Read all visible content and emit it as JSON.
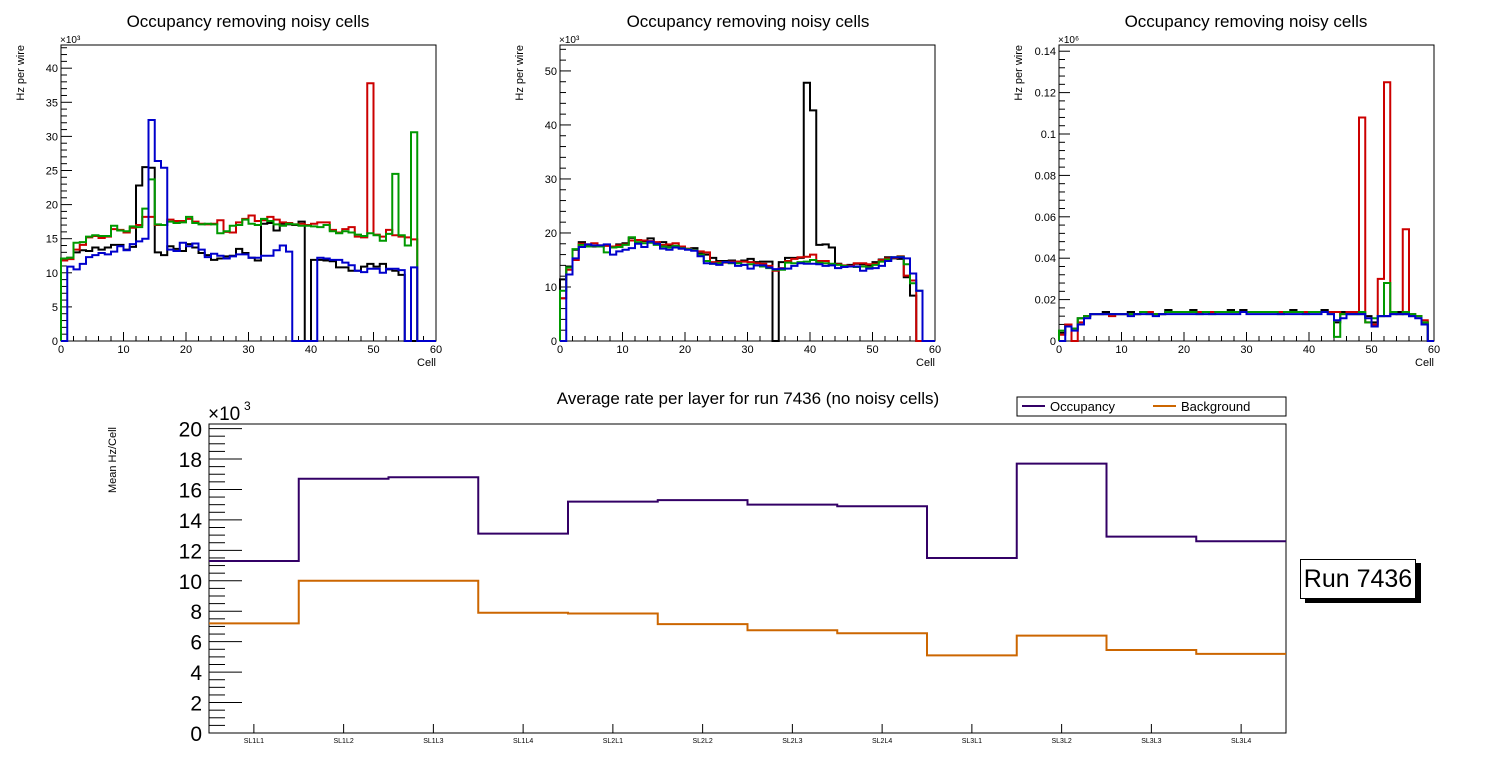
{
  "chart_data": [
    {
      "type": "line",
      "style": "step-histogram",
      "title": "Occupancy removing noisy cells",
      "xlabel": "Cell",
      "ylabel": "Hz per wire",
      "y_multiplier": "×10³",
      "xlim": [
        0,
        60
      ],
      "ylim": [
        0,
        43.4
      ],
      "x_ticks": [
        "0",
        "10",
        "20",
        "30",
        "40",
        "50",
        "60"
      ],
      "y_ticks": [
        "0",
        "5",
        "10",
        "15",
        "20",
        "25",
        "30",
        "35",
        "40"
      ],
      "y_tick_values": [
        0,
        5,
        10,
        15,
        20,
        25,
        30,
        35,
        40
      ],
      "x_tick_values": [
        0,
        10,
        20,
        30,
        40,
        50,
        60
      ],
      "bin_width": 1,
      "series": [
        {
          "name": "black",
          "color": "#000000",
          "values": [
            12,
            12.2,
            13,
            13.3,
            13.2,
            13.7,
            13.4,
            13.7,
            14.1,
            14.1,
            13.4,
            13.8,
            22.8,
            25.5,
            25.4,
            13,
            12.6,
            13.9,
            13.5,
            13.2,
            14.2,
            13.7,
            12.9,
            12.6,
            11.9,
            12.1,
            12.4,
            12.5,
            13.5,
            12.9,
            12.2,
            11.8,
            17.2,
            17.3,
            16.2,
            17.2,
            17.1,
            17,
            17.5,
            0,
            11.9,
            11.9,
            11.8,
            11.7,
            10.8,
            10.8,
            10.3,
            10.3,
            10.9,
            11.3,
            10.9,
            11.3,
            10.5,
            10.3,
            9.7,
            0,
            0,
            0,
            0,
            0
          ]
        },
        {
          "name": "red",
          "color": "#cc0000",
          "values": [
            11.8,
            12,
            13.4,
            14.1,
            15.2,
            15.4,
            15.1,
            15.3,
            16.4,
            16.3,
            15.9,
            16.6,
            17,
            18.2,
            18.2,
            17,
            17,
            17.8,
            17.6,
            17.6,
            17.9,
            17.5,
            17.2,
            17.1,
            17.2,
            17.7,
            16,
            15.9,
            17.4,
            17.9,
            18.4,
            17.6,
            17.7,
            18.2,
            17.8,
            17.4,
            17.3,
            17.1,
            17.2,
            17,
            17.2,
            17.4,
            17.4,
            16.3,
            15.9,
            16.4,
            16.7,
            15.3,
            15.2,
            37.8,
            15.6,
            15.3,
            16.3,
            15.5,
            15.3,
            15.2,
            14.9,
            0,
            0,
            0
          ]
        },
        {
          "name": "green",
          "color": "#009900",
          "values": [
            12.1,
            12.2,
            14.4,
            14.5,
            15.3,
            15.5,
            15.4,
            15.4,
            16.9,
            16.2,
            16.1,
            16.8,
            16.7,
            19.4,
            23.7,
            17.1,
            17,
            17.5,
            17.3,
            17.4,
            18.2,
            17.3,
            17.1,
            17.2,
            17.1,
            15.8,
            16.1,
            16.9,
            17,
            17.8,
            17.2,
            17,
            17.9,
            17.6,
            17.1,
            16.9,
            17.2,
            17.1,
            16.9,
            16.9,
            16.8,
            16.7,
            17,
            16.1,
            15.8,
            16.1,
            15.9,
            15.6,
            15.4,
            15.8,
            15.5,
            14.7,
            15.7,
            24.5,
            15.5,
            14,
            30.6,
            0,
            0,
            0
          ]
        },
        {
          "name": "blue",
          "color": "#0000cc",
          "values": [
            0,
            10.9,
            10.5,
            11.3,
            12.3,
            12.6,
            12.9,
            12.7,
            13.1,
            13.9,
            13.3,
            14.2,
            14.6,
            15,
            32.4,
            26.4,
            25.4,
            13.4,
            13.2,
            14.4,
            13.9,
            14.3,
            13.4,
            12.3,
            12.8,
            12.5,
            12.1,
            12.4,
            12.7,
            12.7,
            12.2,
            12.2,
            12.5,
            12.5,
            13.3,
            14,
            13.1,
            0,
            0,
            0,
            0,
            12.2,
            12.1,
            11.9,
            11.9,
            11.5,
            11.1,
            10.3,
            10.1,
            10.6,
            10.6,
            10,
            10.6,
            10.6,
            10.4,
            0,
            10.8,
            0,
            0,
            0
          ]
        }
      ]
    },
    {
      "type": "line",
      "style": "step-histogram",
      "title": "Occupancy removing noisy cells",
      "xlabel": "Cell",
      "ylabel": "Hz per wire",
      "y_multiplier": "×10³",
      "xlim": [
        0,
        60
      ],
      "ylim": [
        0,
        54.8
      ],
      "x_ticks": [
        "0",
        "10",
        "20",
        "30",
        "40",
        "50",
        "60"
      ],
      "x_tick_values": [
        0,
        10,
        20,
        30,
        40,
        50,
        60
      ],
      "y_ticks": [
        "0",
        "10",
        "20",
        "30",
        "40",
        "50"
      ],
      "y_tick_values": [
        0,
        10,
        20,
        30,
        40,
        50
      ],
      "bin_width": 1,
      "series": [
        {
          "name": "black",
          "color": "#000000",
          "values": [
            11.4,
            13.8,
            16.9,
            18.3,
            17.6,
            17.5,
            17.5,
            17.7,
            17.3,
            17.9,
            18.1,
            19.1,
            18.2,
            18.5,
            19,
            18.2,
            18.3,
            17.7,
            17.6,
            17.1,
            17,
            17.2,
            16.2,
            16,
            15.4,
            14.8,
            14.8,
            14.9,
            14.7,
            14.9,
            15.2,
            14.6,
            14.7,
            14.7,
            0,
            14.6,
            15.4,
            15.4,
            15.4,
            47.8,
            42.7,
            17.8,
            17.9,
            17.3,
            14.3,
            13.9,
            14.1,
            14.3,
            14.2,
            14,
            14.6,
            15.1,
            15.5,
            15.3,
            15.2,
            11.8,
            8.4,
            0,
            0,
            0
          ]
        },
        {
          "name": "red",
          "color": "#cc0000",
          "values": [
            7.9,
            13.2,
            15,
            18,
            17.9,
            18.1,
            17.7,
            17.6,
            17.5,
            17.7,
            17.9,
            18.6,
            18.7,
            18.6,
            18.5,
            18.3,
            17.8,
            17.9,
            18.1,
            17.5,
            17.1,
            16.8,
            16.6,
            16.4,
            14.6,
            14.6,
            14.5,
            14.7,
            14.7,
            14.7,
            14.6,
            14.4,
            14.3,
            13.9,
            13,
            13.5,
            14.8,
            15.2,
            15.5,
            15.6,
            16,
            14.8,
            14.8,
            14.2,
            14.2,
            14,
            13.9,
            14.4,
            14.4,
            14.2,
            14.3,
            15,
            15.3,
            15.4,
            15.7,
            12.1,
            11.2,
            0,
            0,
            0
          ]
        },
        {
          "name": "green",
          "color": "#009900",
          "values": [
            9.3,
            13.6,
            17,
            17.8,
            17.5,
            17.6,
            17.5,
            16.4,
            17.3,
            17.4,
            17.8,
            19.2,
            18.3,
            18.1,
            18.2,
            17.8,
            17.5,
            17.3,
            17.6,
            17.2,
            17,
            16.8,
            16,
            14.8,
            14.3,
            14.4,
            14.6,
            14.4,
            14.4,
            14.1,
            14.2,
            14,
            13.8,
            13.5,
            13.2,
            13.2,
            14.5,
            14.4,
            14.6,
            14.7,
            15,
            14.5,
            14.4,
            14.3,
            14.1,
            13.9,
            13.8,
            13.7,
            13.8,
            13.6,
            14.1,
            14.7,
            15.1,
            15.5,
            15.6,
            14.2,
            10.7,
            9.3,
            0,
            0
          ]
        },
        {
          "name": "blue",
          "color": "#0000cc",
          "values": [
            0,
            12.3,
            15.3,
            17.4,
            17.9,
            17.7,
            17.7,
            17.9,
            16,
            16.6,
            16.9,
            17.2,
            18,
            17.4,
            18.4,
            18,
            17.1,
            16.9,
            17.3,
            17.1,
            16.9,
            16.7,
            15.7,
            14.4,
            14.3,
            14.1,
            14.6,
            14.5,
            13.9,
            14.1,
            13.4,
            14,
            14,
            13.6,
            13.3,
            13.4,
            13.4,
            13.9,
            14.4,
            14.3,
            14.3,
            14.2,
            13.9,
            14,
            13.5,
            13.7,
            13.8,
            13.8,
            13,
            13.4,
            13.5,
            13.9,
            14.8,
            15.5,
            15.5,
            15.3,
            12.5,
            9.3,
            0,
            0
          ]
        }
      ]
    },
    {
      "type": "line",
      "style": "step-histogram",
      "title": "Occupancy removing noisy cells",
      "xlabel": "Cell",
      "ylabel": "Hz per wire",
      "y_multiplier": "×10⁶",
      "xlim": [
        0,
        60
      ],
      "ylim": [
        0,
        0.143
      ],
      "x_ticks": [
        "0",
        "10",
        "20",
        "30",
        "40",
        "50",
        "60"
      ],
      "x_tick_values": [
        0,
        10,
        20,
        30,
        40,
        50,
        60
      ],
      "y_ticks": [
        "0",
        "0.02",
        "0.04",
        "0.06",
        "0.08",
        "0.1",
        "0.12",
        "0.14"
      ],
      "y_tick_values": [
        0,
        0.02,
        0.04,
        0.06,
        0.08,
        0.1,
        0.12,
        0.14
      ],
      "bin_width": 1,
      "series": [
        {
          "name": "black",
          "color": "#000000",
          "values": [
            0.004,
            0.008,
            0.006,
            0.011,
            0.012,
            0.013,
            0.013,
            0.014,
            0.013,
            0.013,
            0.013,
            0.014,
            0.013,
            0.014,
            0.014,
            0.013,
            0.013,
            0.015,
            0.014,
            0.014,
            0.014,
            0.015,
            0.014,
            0.014,
            0.014,
            0.014,
            0.014,
            0.015,
            0.014,
            0.015,
            0.014,
            0.014,
            0.014,
            0.014,
            0.014,
            0.014,
            0.014,
            0.015,
            0.014,
            0.014,
            0.014,
            0.014,
            0.015,
            0.014,
            0.009,
            0.014,
            0.013,
            0.013,
            0.013,
            0.012,
            0.009,
            0.012,
            0.012,
            0.013,
            0.014,
            0.013,
            0.012,
            0.012,
            0.009,
            0
          ]
        },
        {
          "name": "red",
          "color": "#cc0000",
          "values": [
            0.003,
            0.008,
            0,
            0.009,
            0.012,
            0.013,
            0.013,
            0.013,
            0.012,
            0.013,
            0.013,
            0.013,
            0.013,
            0.014,
            0.014,
            0.013,
            0.013,
            0.014,
            0.014,
            0.014,
            0.014,
            0.014,
            0.014,
            0.014,
            0.014,
            0.014,
            0.014,
            0.014,
            0.014,
            0.014,
            0.014,
            0.014,
            0.014,
            0.014,
            0.014,
            0.014,
            0.014,
            0.014,
            0.014,
            0.014,
            0.014,
            0.014,
            0.014,
            0.014,
            0.014,
            0.013,
            0.014,
            0.014,
            0.108,
            0.009,
            0.008,
            0.03,
            0.125,
            0.014,
            0.013,
            0.054,
            0.013,
            0.012,
            0.01,
            0
          ]
        },
        {
          "name": "green",
          "color": "#009900",
          "values": [
            0.005,
            0.007,
            0.006,
            0.011,
            0.012,
            0.013,
            0.013,
            0.013,
            0.013,
            0.013,
            0.013,
            0.013,
            0.013,
            0.014,
            0.013,
            0.013,
            0.013,
            0.014,
            0.014,
            0.014,
            0.014,
            0.014,
            0.013,
            0.014,
            0.013,
            0.014,
            0.014,
            0.014,
            0.014,
            0.014,
            0.014,
            0.014,
            0.014,
            0.014,
            0.014,
            0.013,
            0.014,
            0.014,
            0.014,
            0.013,
            0.014,
            0.014,
            0.014,
            0.013,
            0.002,
            0.013,
            0.013,
            0.013,
            0.014,
            0.009,
            0.011,
            0.012,
            0.028,
            0.014,
            0.013,
            0.014,
            0.013,
            0.012,
            0.009,
            0
          ]
        },
        {
          "name": "blue",
          "color": "#0000cc",
          "values": [
            0,
            0.007,
            0.005,
            0.008,
            0.011,
            0.013,
            0.013,
            0.013,
            0.013,
            0.013,
            0.013,
            0.012,
            0.013,
            0.013,
            0.013,
            0.012,
            0.013,
            0.013,
            0.013,
            0.013,
            0.013,
            0.013,
            0.013,
            0.013,
            0.013,
            0.013,
            0.013,
            0.013,
            0.013,
            0.014,
            0.013,
            0.013,
            0.013,
            0.013,
            0.013,
            0.013,
            0.013,
            0.013,
            0.013,
            0.013,
            0.013,
            0.013,
            0.014,
            0.013,
            0.01,
            0.011,
            0.013,
            0.013,
            0.013,
            0.011,
            0.007,
            0.012,
            0.012,
            0.013,
            0.013,
            0.013,
            0.012,
            0.011,
            0.008,
            0
          ]
        }
      ]
    },
    {
      "type": "line",
      "style": "step-histogram",
      "title": "Average rate per layer for run 7436 (no noisy cells)",
      "xlabel": "",
      "ylabel": "Mean Hz/Cell",
      "y_multiplier": "×10³",
      "ylim": [
        0,
        20.3
      ],
      "y_ticks": [
        "0",
        "2",
        "4",
        "6",
        "8",
        "10",
        "12",
        "14",
        "16",
        "18",
        "20"
      ],
      "y_tick_values": [
        0,
        2,
        4,
        6,
        8,
        10,
        12,
        14,
        16,
        18,
        20
      ],
      "categories": [
        "SL1L1",
        "SL1L2",
        "SL1L3",
        "SL1L4",
        "SL2L1",
        "SL2L2",
        "SL2L3",
        "SL2L4",
        "SL3L1",
        "SL3L2",
        "SL3L3",
        "SL3L4"
      ],
      "legend": {
        "placement": "top-right",
        "entries": [
          "Occupancy",
          "Background"
        ]
      },
      "series": [
        {
          "name": "Occupancy",
          "color": "#330066",
          "values": [
            11.3,
            16.7,
            16.8,
            13.1,
            15.2,
            15.3,
            15.0,
            14.9,
            11.5,
            17.7,
            12.9,
            12.6
          ]
        },
        {
          "name": "Background",
          "color": "#cc6600",
          "values": [
            7.2,
            10.0,
            10.0,
            7.9,
            7.85,
            7.15,
            6.75,
            6.55,
            5.1,
            6.4,
            5.45,
            5.2
          ]
        }
      ]
    }
  ],
  "annotation": {
    "run_label": "Run 7436"
  }
}
